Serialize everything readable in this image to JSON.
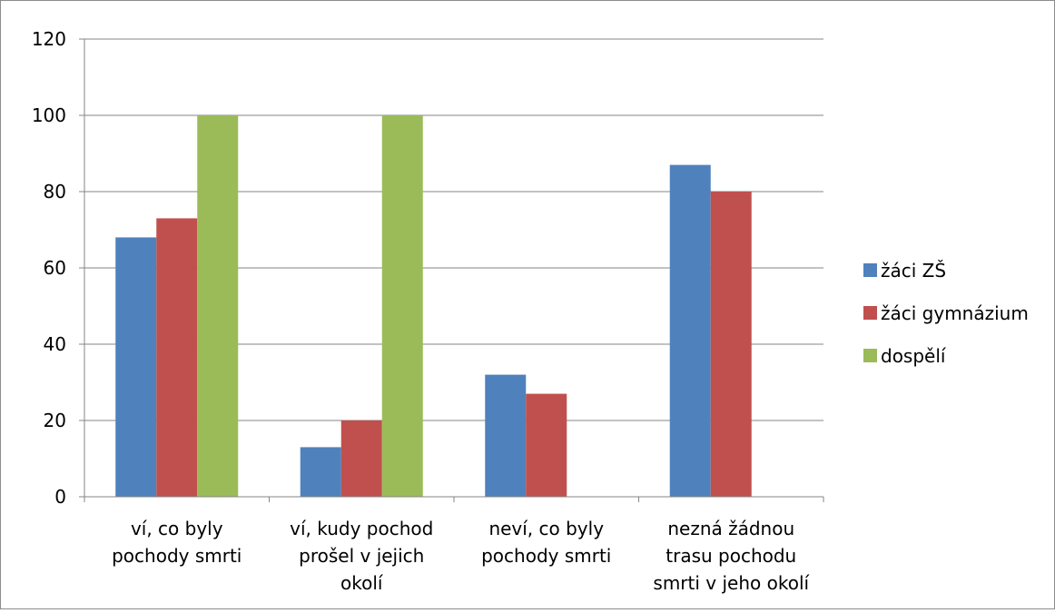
{
  "chart_data": {
    "type": "bar",
    "categories": [
      [
        "ví, co byly",
        "pochody smrti"
      ],
      [
        "ví, kudy pochod",
        "prošel v jejich",
        "okolí"
      ],
      [
        "neví, co byly",
        "pochody smrti"
      ],
      [
        "nezná žádnou",
        "trasu pochodu",
        "smrti v jeho okolí"
      ]
    ],
    "series": [
      {
        "name": "žáci ZŠ",
        "color": "#4f81bd",
        "values": [
          68,
          13,
          32,
          87
        ]
      },
      {
        "name": "žáci gymnázium",
        "color": "#c0504d",
        "values": [
          73,
          20,
          27,
          80
        ]
      },
      {
        "name": "dospělí",
        "color": "#9bbb59",
        "values": [
          100,
          100,
          0,
          0
        ]
      }
    ],
    "ylim": [
      0,
      120
    ],
    "yticks": [
      "0",
      "20",
      "40",
      "60",
      "80",
      "100",
      "120"
    ],
    "grid": true,
    "legend_position": "right"
  }
}
